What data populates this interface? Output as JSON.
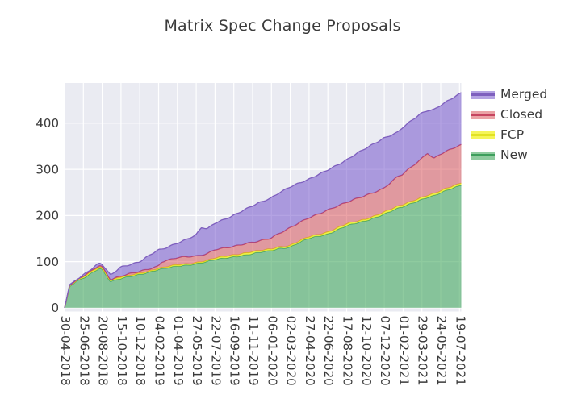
{
  "figure": {
    "title": "Matrix Spec Change Proposals"
  },
  "chart_data": {
    "type": "area",
    "stacked": true,
    "title": "Matrix Spec Change Proposals",
    "xlabel": "",
    "ylabel": "",
    "grid": true,
    "style": {
      "plot_bg": "#eaebf2",
      "grid_color": "#ffffff",
      "text_color": "#3a3a3a"
    },
    "ylim": [
      -8,
      487
    ],
    "y_ticks": [
      0,
      100,
      200,
      300,
      400
    ],
    "y_tick_labels": [
      "0",
      "100",
      "200",
      "300",
      "400"
    ],
    "x_tick_labels": [
      "30-04-2018",
      "25-06-2018",
      "20-08-2018",
      "15-10-2018",
      "10-12-2018",
      "04-02-2019",
      "01-04-2019",
      "27-05-2019",
      "22-07-2019",
      "16-09-2019",
      "11-11-2019",
      "06-01-2020",
      "02-03-2020",
      "27-04-2020",
      "22-06-2020",
      "17-08-2020",
      "12-10-2020",
      "07-12-2020",
      "01-02-2021",
      "29-03-2021",
      "24-05-2021",
      "19-07-2021"
    ],
    "legend": {
      "position": "upper-right-outside",
      "entries": [
        "Merged",
        "Closed",
        "FCP",
        "New"
      ]
    },
    "series": [
      {
        "name": "New",
        "fill": "rgba(62,166,90,0.58)",
        "line": "#3d9e5c",
        "values_at_ticks": [
          0,
          64,
          84,
          63,
          73,
          83,
          90,
          96,
          104,
          111,
          117,
          124,
          132,
          150,
          160,
          177,
          188,
          203,
          218,
          235,
          248,
          264
        ]
      },
      {
        "name": "FCP",
        "fill": "rgba(242,242,48,0.80)",
        "line": "#e2e222",
        "values_at_ticks": [
          0,
          3,
          3,
          3,
          2,
          2,
          3,
          2,
          3,
          4,
          4,
          3,
          3,
          3,
          4,
          4,
          3,
          4,
          4,
          4,
          4,
          4
        ]
      },
      {
        "name": "Closed",
        "fill": "rgba(214,62,70,0.48)",
        "line": "#c64560",
        "values_at_ticks": [
          0,
          2,
          3,
          2,
          4,
          6,
          15,
          14,
          20,
          17,
          21,
          25,
          37,
          42,
          48,
          46,
          52,
          52,
          66,
          83,
          81,
          82
        ]
      },
      {
        "name": "Merged",
        "fill": "rgba(112,78,202,0.52)",
        "line": "#7e5fbe",
        "values_at_ticks": [
          0,
          3,
          4,
          21,
          21,
          34,
          33,
          45,
          56,
          69,
          78,
          86,
          90,
          82,
          87,
          92,
          101,
          109,
          101,
          99,
          105,
          111
        ]
      }
    ],
    "samples": {
      "f": [
        0,
        0.0061,
        0.0122,
        0.0297,
        0.0473,
        0.0874,
        0.0946,
        0.1159,
        0.1418,
        0.1891,
        0.2364,
        0.2445,
        0.2837,
        0.3309,
        0.3455,
        0.3597,
        0.3782,
        0.4255,
        0.4728,
        0.52,
        0.5386,
        0.5673,
        0.6146,
        0.6619,
        0.7091,
        0.7564,
        0.8037,
        0.84,
        0.851,
        0.8982,
        0.9146,
        0.9309,
        0.9455,
        0.9928,
        1
      ],
      "new_top": [
        0,
        20,
        46,
        57,
        64,
        87,
        84,
        57,
        63,
        73,
        83,
        84,
        90,
        96,
        98,
        100,
        104,
        111,
        117,
        124,
        129,
        132,
        150,
        160,
        177,
        188,
        203,
        215,
        218,
        235,
        240,
        243,
        248,
        264,
        267
      ],
      "fcp_top": [
        0,
        21,
        47,
        58,
        67,
        90,
        87,
        59,
        66,
        75,
        85,
        86,
        93,
        98,
        100,
        102,
        107,
        115,
        121,
        127,
        132,
        135,
        153,
        164,
        181,
        191,
        207,
        219,
        222,
        239,
        244,
        247,
        252,
        268,
        271
      ],
      "closed_top": [
        0,
        22,
        48,
        59,
        69,
        93,
        90,
        61,
        68,
        79,
        91,
        100,
        108,
        112,
        115,
        118,
        127,
        132,
        142,
        152,
        160,
        172,
        195,
        212,
        227,
        243,
        259,
        284,
        288,
        322,
        336,
        324,
        333,
        350,
        352
      ],
      "merged_top": [
        0,
        23,
        50,
        61,
        72,
        96,
        94,
        70,
        89,
        100,
        125,
        126,
        141,
        157,
        174,
        170,
        183,
        201,
        220,
        238,
        249,
        262,
        277,
        299,
        319,
        344,
        368,
        380,
        389,
        421,
        428,
        430,
        438,
        461,
        465
      ]
    }
  }
}
